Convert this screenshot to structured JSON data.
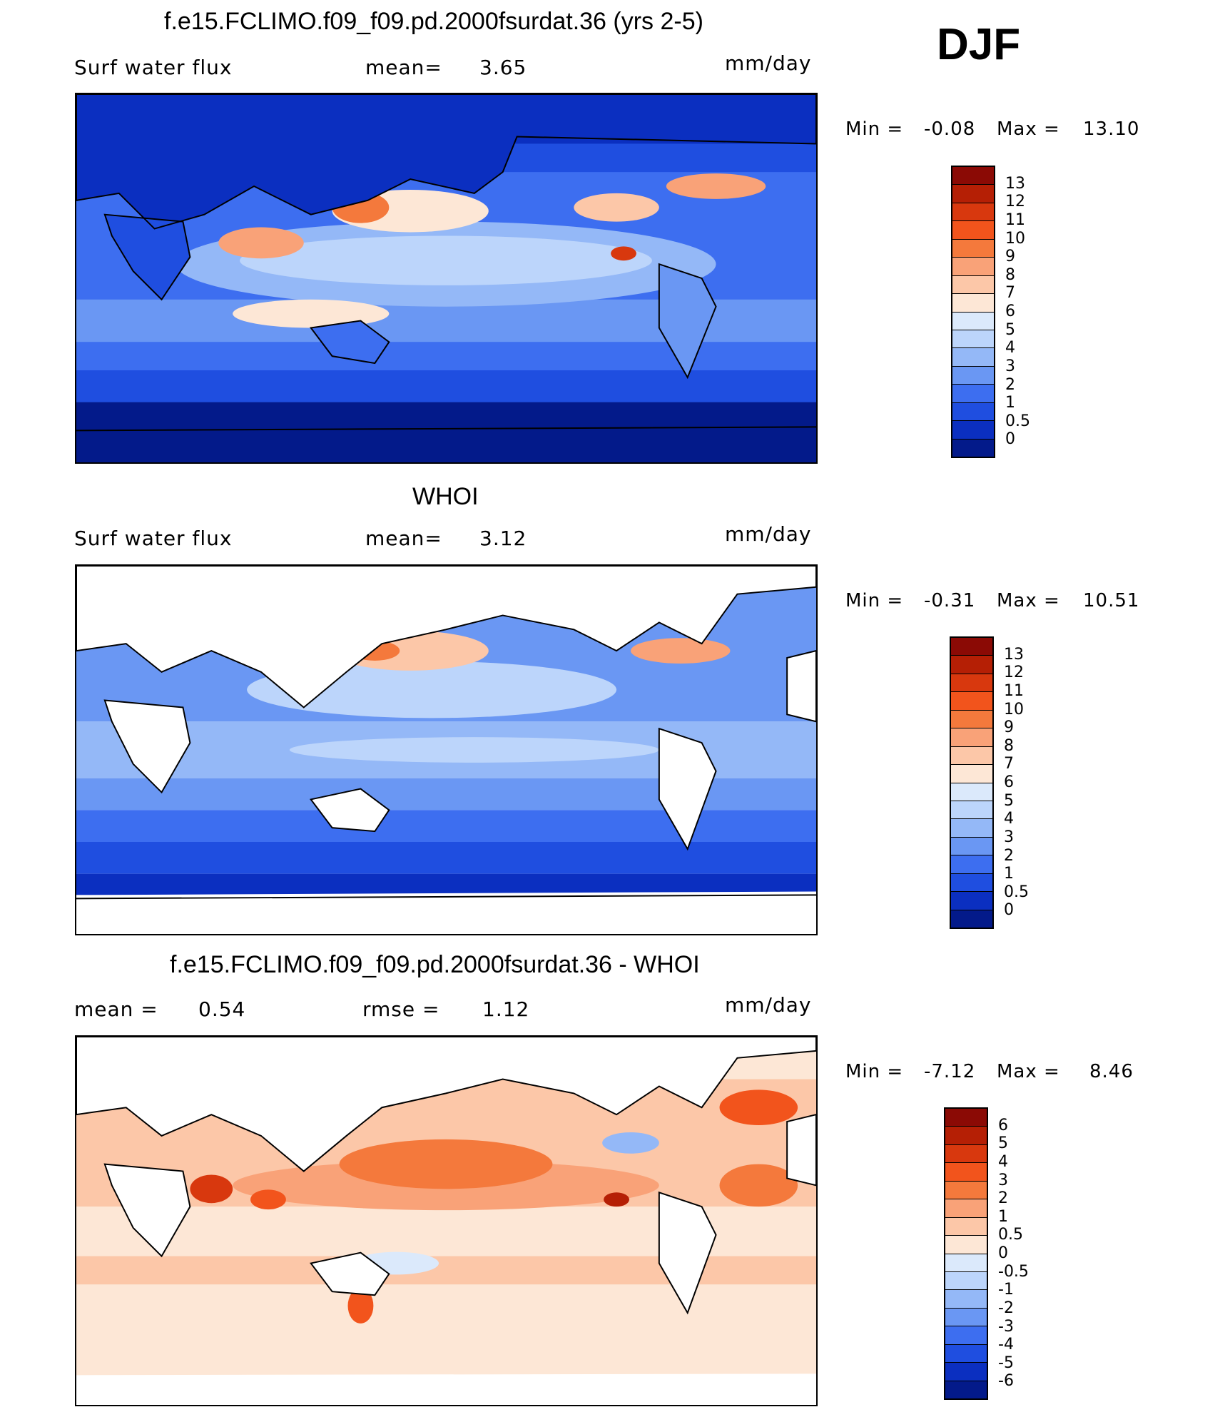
{
  "season": "DJF",
  "panels": [
    {
      "title": "f.e15.FCLIMO.f09_f09.pd.2000fsurdat.36 (yrs 2-5)",
      "left_text": "Surf water flux",
      "center_text": "mean=",
      "center_value": "3.65",
      "units": "mm/day",
      "min_label": "Min =",
      "min_value": "-0.08",
      "max_label": "Max =",
      "max_value": "13.10",
      "levels": [
        "13",
        "12",
        "11",
        "10",
        "9",
        "8",
        "7",
        "6",
        "5",
        "4",
        "3",
        "2",
        "1",
        "0.5",
        "0"
      ],
      "colors": [
        "#8b0a05",
        "#b51f05",
        "#d8380e",
        "#f2541c",
        "#f4793c",
        "#f9a278",
        "#fcc7a8",
        "#fde7d6",
        "#dbe9fb",
        "#bcd5fb",
        "#94b8f7",
        "#6a97f3",
        "#3d6ef0",
        "#1f4ee0",
        "#0b2fc0",
        "#031a8a"
      ]
    },
    {
      "title": "WHOI",
      "left_text": "Surf water flux",
      "center_text": "mean=",
      "center_value": "3.12",
      "units": "mm/day",
      "min_label": "Min =",
      "min_value": "-0.31",
      "max_label": "Max =",
      "max_value": "10.51",
      "levels": [
        "13",
        "12",
        "11",
        "10",
        "9",
        "8",
        "7",
        "6",
        "5",
        "4",
        "3",
        "2",
        "1",
        "0.5",
        "0"
      ],
      "colors": [
        "#8b0a05",
        "#b51f05",
        "#d8380e",
        "#f2541c",
        "#f4793c",
        "#f9a278",
        "#fcc7a8",
        "#fde7d6",
        "#dbe9fb",
        "#bcd5fb",
        "#94b8f7",
        "#6a97f3",
        "#3d6ef0",
        "#1f4ee0",
        "#0b2fc0",
        "#031a8a"
      ]
    },
    {
      "title": "f.e15.FCLIMO.f09_f09.pd.2000fsurdat.36 - WHOI",
      "left_text": "mean =",
      "left_value": "0.54",
      "center_text": "rmse =",
      "center_value": "1.12",
      "units": "mm/day",
      "min_label": "Min =",
      "min_value": "-7.12",
      "max_label": "Max =",
      "max_value": "8.46",
      "levels": [
        "6",
        "5",
        "4",
        "3",
        "2",
        "1",
        "0.5",
        "0",
        "-0.5",
        "-1",
        "-2",
        "-3",
        "-4",
        "-5",
        "-6"
      ],
      "colors": [
        "#8b0a05",
        "#b51f05",
        "#d8380e",
        "#f2541c",
        "#f4793c",
        "#f9a278",
        "#fcc7a8",
        "#fde7d6",
        "#dbe9fb",
        "#bcd5fb",
        "#94b8f7",
        "#6a97f3",
        "#3d6ef0",
        "#1f4ee0",
        "#0b2fc0",
        "#031a8a"
      ]
    }
  ]
}
